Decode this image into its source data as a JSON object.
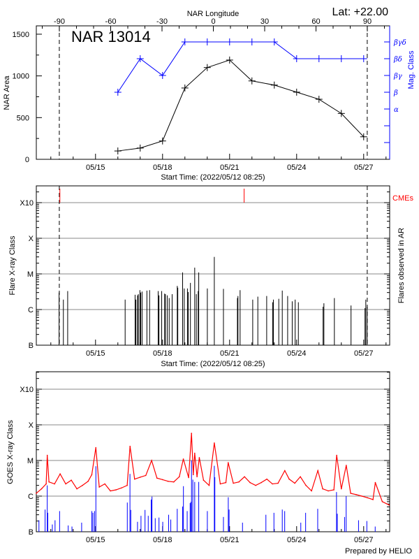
{
  "header": {
    "lat": "Lat: +22.00",
    "top_axis_label": "NAR Longitude"
  },
  "footer": "Prepared by HELIO",
  "chart_data": [
    {
      "type": "line",
      "title": "NAR 13014",
      "xlabel": "Start Time: (2022/05/12 08:25)",
      "x_start": "05/12 08:25",
      "x_ticks": [
        "05/15",
        "05/18",
        "05/21",
        "05/24",
        "05/27"
      ],
      "top_xlabel": "NAR Longitude",
      "top_x_ticks": [
        -90,
        -60,
        -30,
        0,
        30,
        60,
        90
      ],
      "ylabel": "NAR Area",
      "ylim": [
        0,
        1600
      ],
      "y_ticks": [
        0,
        500,
        1000,
        1500
      ],
      "y2label": "Mag. Class",
      "y2_categories": [
        "α",
        "β",
        "βγ",
        "βδ",
        "βγδ"
      ],
      "limb_lines": [
        "05/13 09:07",
        "05/27 03:50"
      ],
      "colors": {
        "area": "#000000",
        "mag_class": "#0000ff"
      },
      "series": [
        {
          "axis": "left",
          "dates": [
            "05/16 00:00",
            "05/17 00:00",
            "05/18 00:00",
            "05/19 00:00",
            "05/20 00:00",
            "05/21 00:00",
            "05/22 00:00",
            "05/23 00:00",
            "05/24 00:00",
            "05/25 00:00",
            "05/26 00:00",
            "05/27 00:00"
          ],
          "values": [
            100,
            135,
            220,
            855,
            1100,
            1190,
            940,
            890,
            805,
            720,
            550,
            270
          ]
        },
        {
          "axis": "right",
          "dates": [
            "05/16 00:00",
            "05/17 00:00",
            "05/18 00:00",
            "05/19 00:00",
            "05/20 00:00",
            "05/21 00:00",
            "05/22 00:00",
            "05/23 00:00",
            "05/24 00:00",
            "05/25 00:00",
            "05/26 00:00",
            "05/27 00:00"
          ],
          "values": [
            "β",
            "βδ",
            "βγ",
            "βγδ",
            "βγδ",
            "βγδ",
            "βγδ",
            "βγδ",
            "βδ",
            "βδ",
            "βδ",
            "βδ"
          ]
        }
      ]
    },
    {
      "type": "bar",
      "xlabel": "Start Time: (2022/05/12 08:25)",
      "x_ticks": [
        "05/15",
        "05/18",
        "05/21",
        "05/24",
        "05/27"
      ],
      "ylabel": "Flare X-ray Class",
      "y2label": "Flares observed in AR",
      "y_scale": "log",
      "y_ticks": [
        "B",
        "C",
        "M",
        "X",
        "X10"
      ],
      "grid": true,
      "limb_lines": [
        "05/13 09:07",
        "05/27 03:50"
      ],
      "cme_label": "CMEs",
      "cmes": [
        "05/13 09:43",
        "05/21 15:36"
      ],
      "colors": {
        "flares": "#000000",
        "cmes": "#ff0000",
        "grid": "#888888"
      },
      "flares": [
        [
          "05/13 08:52",
          "C3.0"
        ],
        [
          "05/13 13:29",
          "C1.9"
        ],
        [
          "05/13 18:06",
          "C3.3"
        ],
        [
          "05/16 07:49",
          "C1.9"
        ],
        [
          "05/16 18:30",
          "C2.6"
        ],
        [
          "05/16 19:22",
          "C1.9"
        ],
        [
          "05/16 21:06",
          "C2.5"
        ],
        [
          "05/16 21:58",
          "C2.7"
        ],
        [
          "05/16 23:41",
          "C3.5"
        ],
        [
          "05/17 00:33",
          "C3.0"
        ],
        [
          "05/17 02:00",
          "C3.2"
        ],
        [
          "05/17 07:12",
          "C3.4"
        ],
        [
          "05/17 10:05",
          "C3.5"
        ],
        [
          "05/17 19:18",
          "C3.3"
        ],
        [
          "05/17 20:10",
          "C2.5"
        ],
        [
          "05/17 23:04",
          "C3.3"
        ],
        [
          "05/18 02:14",
          "C2.8"
        ],
        [
          "05/18 03:06",
          "C2.7"
        ],
        [
          "05/18 05:07",
          "C2.5"
        ],
        [
          "05/18 07:08",
          "C2.1"
        ],
        [
          "05/18 10:18",
          "C2.7"
        ],
        [
          "05/18 15:48",
          "C4.6"
        ],
        [
          "05/18 16:22",
          "C4.1"
        ],
        [
          "05/18 21:33",
          "M1.1"
        ],
        [
          "05/18 23:17",
          "C3.9"
        ],
        [
          "05/19 02:44",
          "C3.9"
        ],
        [
          "05/19 03:36",
          "C3.1"
        ],
        [
          "05/19 05:56",
          "C5.6"
        ],
        [
          "05/19 10:32",
          "M1.5"
        ],
        [
          "05/19 12:16",
          "C2.7"
        ],
        [
          "05/19 14:17",
          "C3.3"
        ],
        [
          "05/19 14:51",
          "M1.1"
        ],
        [
          "05/20 00:06",
          "C3.9"
        ],
        [
          "05/20 07:35",
          "M3.0"
        ],
        [
          "05/20 17:24",
          "C3.8"
        ],
        [
          "05/21 08:24",
          "C2.1"
        ],
        [
          "05/21 08:59",
          "C2.4"
        ],
        [
          "05/21 11:17",
          "C3.5"
        ],
        [
          "05/22 00:50",
          "C1.9"
        ],
        [
          "05/22 06:19",
          "C2.3"
        ],
        [
          "05/22 15:50",
          "C2.4"
        ],
        [
          "05/22 22:12",
          "C1.6"
        ],
        [
          "05/22 23:04",
          "C1.9"
        ],
        [
          "05/23 04:49",
          "C2.0"
        ],
        [
          "05/23 08:34",
          "C3.4"
        ],
        [
          "05/23 14:21",
          "C2.4"
        ],
        [
          "05/23 19:15",
          "C1.7"
        ],
        [
          "05/23 22:25",
          "C1.9"
        ],
        [
          "05/24 01:52",
          "C1.6"
        ],
        [
          "05/25 04:25",
          "C1.2"
        ],
        [
          "05/25 05:17",
          "C1.5"
        ],
        [
          "05/25 16:32",
          "C2.1"
        ],
        [
          "05/26 10:25",
          "C1.3"
        ],
        [
          "05/27 01:25",
          "C1.1"
        ],
        [
          "05/27 02:17",
          "C1.9"
        ],
        [
          "05/27 03:43",
          "C1.2"
        ]
      ]
    },
    {
      "type": "line",
      "x_ticks": [
        "05/15",
        "05/18",
        "05/21",
        "05/24",
        "05/27"
      ],
      "ylabel": "GOES X-ray Class",
      "y_scale": "log",
      "y_ticks": [
        "B",
        "C",
        "M",
        "X",
        "X10"
      ],
      "grid": true,
      "colors": {
        "long_channel": "#ff0000",
        "short_channel": "#0000ff",
        "grid": "#888888"
      },
      "series": [
        {
          "color": "#ff0000",
          "points": [
            [
              "05/12 08:25",
              "C1.2"
            ],
            [
              "05/12 14:00",
              "C1.6"
            ],
            [
              "05/12 19:00",
              "C2.2"
            ],
            [
              "05/12 20:10",
              "M1.4"
            ],
            [
              "05/12 22:00",
              "C2.5"
            ],
            [
              "05/13 04:00",
              "C2.2"
            ],
            [
              "05/13 10:00",
              "C4.2"
            ],
            [
              "05/13 16:00",
              "C2.2"
            ],
            [
              "05/13 22:00",
              "C2.8"
            ],
            [
              "05/14 04:00",
              "C1.6"
            ],
            [
              "05/14 10:00",
              "C2.0"
            ],
            [
              "05/14 16:00",
              "C2.6"
            ],
            [
              "05/14 20:00",
              "C4.0"
            ],
            [
              "05/15 00:21",
              "M2.3"
            ],
            [
              "05/15 04:00",
              "C1.8"
            ],
            [
              "05/15 10:00",
              "C2.2"
            ],
            [
              "05/15 16:00",
              "C1.4"
            ],
            [
              "05/15 22:00",
              "C1.5"
            ],
            [
              "05/16 04:00",
              "C1.7"
            ],
            [
              "05/16 10:00",
              "C2.0"
            ],
            [
              "05/16 13:05",
              "M2.5"
            ],
            [
              "05/16 18:00",
              "C3.0"
            ],
            [
              "05/17 00:00",
              "C3.4"
            ],
            [
              "05/17 06:00",
              "C3.8"
            ],
            [
              "05/17 12:15",
              "M1.0"
            ],
            [
              "05/17 18:00",
              "C3.2"
            ],
            [
              "05/18 00:00",
              "C2.9"
            ],
            [
              "05/18 06:00",
              "C2.6"
            ],
            [
              "05/18 12:00",
              "C2.5"
            ],
            [
              "05/18 18:00",
              "C3.5"
            ],
            [
              "05/18 22:20",
              "M1.1"
            ],
            [
              "05/19 04:00",
              "C3.3"
            ],
            [
              "05/19 07:05",
              "M5.8"
            ],
            [
              "05/19 09:00",
              "C4.0"
            ],
            [
              "05/19 10:32",
              "M1.6"
            ],
            [
              "05/19 13:00",
              "C3.5"
            ],
            [
              "05/19 15:29",
              "M1.2"
            ],
            [
              "05/19 20:00",
              "C2.8"
            ],
            [
              "05/20 02:00",
              "C2.0"
            ],
            [
              "05/20 07:35",
              "M3.1"
            ],
            [
              "05/20 14:00",
              "C2.2"
            ],
            [
              "05/20 20:00",
              "C2.4"
            ],
            [
              "05/20 22:30",
              "C8.7"
            ],
            [
              "05/21 04:00",
              "C2.3"
            ],
            [
              "05/21 10:00",
              "C2.5"
            ],
            [
              "05/21 16:00",
              "C3.5"
            ],
            [
              "05/21 22:00",
              "C2.4"
            ],
            [
              "05/22 04:00",
              "C2.0"
            ],
            [
              "05/22 10:00",
              "C2.4"
            ],
            [
              "05/22 16:00",
              "C3.0"
            ],
            [
              "05/22 22:00",
              "C2.2"
            ],
            [
              "05/23 04:00",
              "C2.3"
            ],
            [
              "05/23 11:17",
              "C5.2"
            ],
            [
              "05/23 16:00",
              "C3.0"
            ],
            [
              "05/23 22:00",
              "C2.3"
            ],
            [
              "05/24 04:00",
              "C3.5"
            ],
            [
              "05/24 10:00",
              "C2.0"
            ],
            [
              "05/24 16:00",
              "C1.4"
            ],
            [
              "05/24 22:48",
              "C5.2"
            ],
            [
              "05/25 04:00",
              "C1.6"
            ],
            [
              "05/25 10:00",
              "C1.4"
            ],
            [
              "05/25 16:00",
              "C1.5"
            ],
            [
              "05/25 19:00",
              "M1.4"
            ],
            [
              "05/26 00:00",
              "C1.6"
            ],
            [
              "05/26 05:17",
              "C7.3"
            ],
            [
              "05/26 10:00",
              "C1.2"
            ],
            [
              "05/26 16:00",
              "C1.1"
            ],
            [
              "05/26 22:00",
              "C1.0"
            ],
            [
              "05/27 04:00",
              "B9.0"
            ],
            [
              "05/27 10:00",
              "B8.0"
            ],
            [
              "05/27 12:30",
              "C2.4"
            ],
            [
              "05/27 20:00",
              "B7.0"
            ],
            [
              "05/28 03:30",
              "B5.6"
            ]
          ]
        },
        {
          "color": "#0000ff",
          "spikes": [
            [
              "05/12 11:14",
              "B2.1"
            ],
            [
              "05/12 17:51",
              "B4.2"
            ],
            [
              "05/12 20:10",
              "C2.0"
            ],
            [
              "05/12 20:44",
              "B3.4"
            ],
            [
              "05/13 01:39",
              "B1.6"
            ],
            [
              "05/13 04:32",
              "B2.1"
            ],
            [
              "05/13 09:26",
              "B3.8"
            ],
            [
              "05/13 18:40",
              "B1.5"
            ],
            [
              "05/13 22:42",
              "B1.4"
            ],
            [
              "05/14 09:06",
              "B1.8"
            ],
            [
              "05/14 20:04",
              "B3.8"
            ],
            [
              "05/14 21:13",
              "B3.4"
            ],
            [
              "05/14 22:57",
              "B3.8"
            ],
            [
              "05/15 00:23",
              "C6.9"
            ],
            [
              "05/16 10:08",
              "B6.6"
            ],
            [
              "05/16 13:00",
              "C4.2"
            ],
            [
              "05/16 13:52",
              "B4.1"
            ],
            [
              "05/16 21:06",
              "B1.9"
            ],
            [
              "05/17 00:50",
              "B2.8"
            ],
            [
              "05/17 05:10",
              "B4.1"
            ],
            [
              "05/17 08:37",
              "B2.8"
            ],
            [
              "05/17 11:47",
              "B8.0"
            ],
            [
              "05/17 12:39",
              "B9.7"
            ],
            [
              "05/17 16:08",
              "B2.4"
            ],
            [
              "05/17 20:10",
              "B2.5"
            ],
            [
              "05/18 00:12",
              "B1.9"
            ],
            [
              "05/18 06:32",
              "B3.0"
            ],
            [
              "05/18 08:50",
              "B2.2"
            ],
            [
              "05/18 15:46",
              "B4.4"
            ],
            [
              "05/18 21:33",
              "B5.1"
            ],
            [
              "05/18 22:25",
              "C1.9"
            ],
            [
              "05/19 02:27",
              "B3.8"
            ],
            [
              "05/19 05:37",
              "B6.4"
            ],
            [
              "05/19 06:29",
              "B6.9"
            ],
            [
              "05/19 07:05",
              "M1.0"
            ],
            [
              "05/19 08:31",
              "C2.9"
            ],
            [
              "05/19 10:32",
              "C2.5"
            ],
            [
              "05/19 14:51",
              "C2.5"
            ],
            [
              "05/20 00:06",
              "B3.8"
            ],
            [
              "05/20 07:35",
              "C7.1"
            ],
            [
              "05/20 08:10",
              "C3.4"
            ],
            [
              "05/20 17:24",
              "B2.6"
            ],
            [
              "05/20 22:35",
              "B9.3"
            ],
            [
              "05/20 23:27",
              "B4.2"
            ],
            [
              "05/21 13:52",
              "B1.8"
            ],
            [
              "05/22 14:59",
              "B3.0"
            ],
            [
              "05/22 23:37",
              "B3.4"
            ],
            [
              "05/23 08:34",
              "B4.2"
            ],
            [
              "05/23 11:10",
              "B3.8"
            ],
            [
              "05/24 04:28",
              "B1.8"
            ],
            [
              "05/24 09:39",
              "B3.4"
            ],
            [
              "05/24 22:38",
              "B4.4"
            ],
            [
              "05/25 18:49",
              "C1.3"
            ],
            [
              "05/25 19:41",
              "B3.2"
            ],
            [
              "05/26 03:29",
              "B2.6"
            ],
            [
              "05/26 05:12",
              "C1.0"
            ],
            [
              "05/26 18:29",
              "B2.1"
            ],
            [
              "05/27 03:24",
              "B2.0"
            ],
            [
              "05/27 12:22",
              "B1.4"
            ]
          ]
        }
      ]
    }
  ]
}
